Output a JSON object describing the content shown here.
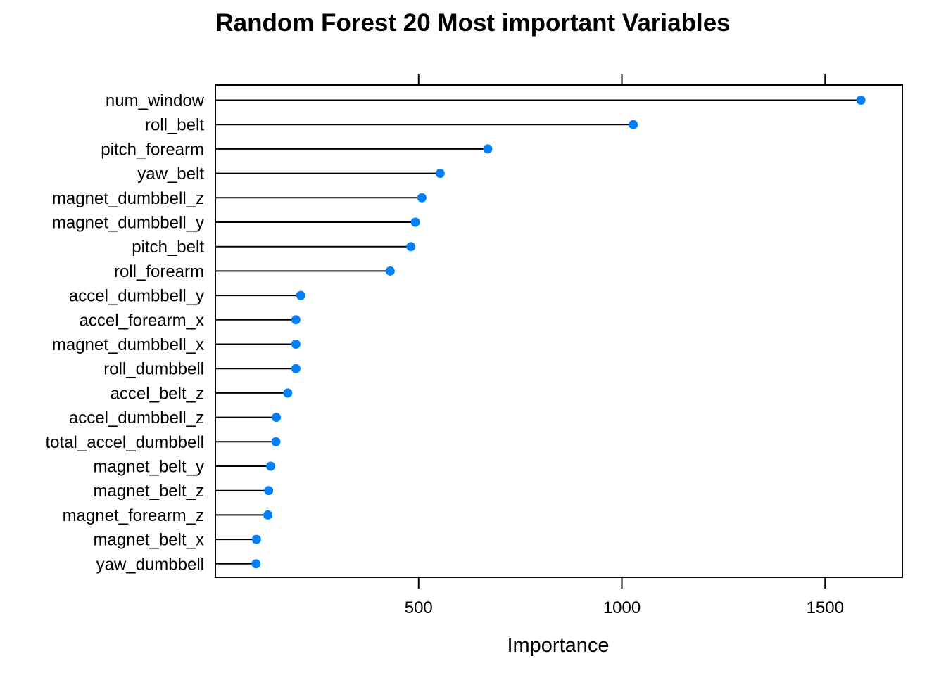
{
  "chart_data": {
    "type": "dotplot",
    "title": "Random Forest 20 Most important Variables",
    "xlabel": "Importance",
    "ylabel": "",
    "xlim": [
      0,
      1690
    ],
    "x_ticks": [
      500,
      1000,
      1500
    ],
    "x_tick_labels": [
      "500",
      "1000",
      "1500"
    ],
    "point_color": "#0080ff",
    "line_color": "#000000",
    "categories": [
      "num_window",
      "roll_belt",
      "pitch_forearm",
      "yaw_belt",
      "magnet_dumbbell_z",
      "magnet_dumbbell_y",
      "pitch_belt",
      "roll_forearm",
      "accel_dumbbell_y",
      "accel_forearm_x",
      "magnet_dumbbell_x",
      "roll_dumbbell",
      "accel_belt_z",
      "accel_dumbbell_z",
      "total_accel_dumbbell",
      "magnet_belt_y",
      "magnet_belt_z",
      "magnet_forearm_z",
      "magnet_belt_x",
      "yaw_dumbbell"
    ],
    "values": [
      1588,
      1028,
      670,
      553,
      508,
      492,
      481,
      430,
      210,
      198,
      198,
      198,
      178,
      150,
      149,
      136,
      131,
      129,
      101,
      100
    ]
  }
}
